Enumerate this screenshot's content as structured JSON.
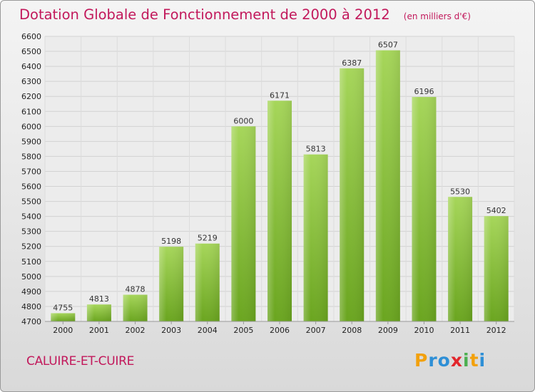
{
  "chart_data": {
    "type": "bar",
    "title": "Dotation Globale de Fonctionnement de 2000 à 2012",
    "unit_label": "(en milliers d'€)",
    "categories": [
      "2000",
      "2001",
      "2002",
      "2003",
      "2004",
      "2005",
      "2006",
      "2007",
      "2008",
      "2009",
      "2010",
      "2011",
      "2012"
    ],
    "values": [
      4755,
      4813,
      4878,
      5198,
      5219,
      6000,
      6171,
      5813,
      6387,
      6507,
      6196,
      5530,
      5402
    ],
    "ylim": [
      4700,
      6600
    ],
    "yticks": [
      4700,
      4800,
      4900,
      5000,
      5100,
      5200,
      5300,
      5400,
      5500,
      5600,
      5700,
      5800,
      5900,
      6000,
      6100,
      6200,
      6300,
      6400,
      6500,
      6600
    ],
    "grid": true,
    "bar_color": "#8cc63f",
    "xlabel": "",
    "ylabel": ""
  },
  "footer": {
    "commune": "CALUIRE-ET-CUIRE",
    "logo": {
      "p": "P",
      "r": "r",
      "o": "o",
      "x": "x",
      "i": "i",
      "t": "t",
      "i2": "i"
    }
  },
  "colors": {
    "title": "#c2185b",
    "bar": "#8cc63f"
  }
}
